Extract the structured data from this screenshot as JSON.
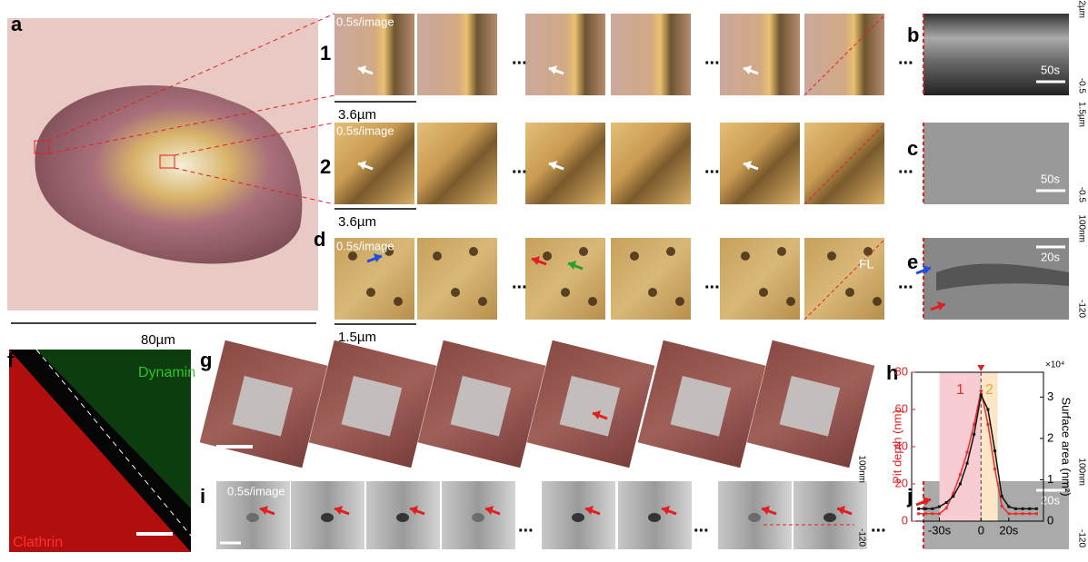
{
  "panel_labels": {
    "a": "a",
    "b": "b",
    "c": "c",
    "d": "d",
    "e": "e",
    "f": "f",
    "g": "g",
    "h": "h",
    "i": "i",
    "j": "j"
  },
  "row_labels": [
    "1",
    "2"
  ],
  "frame_caption": "0.5s/image",
  "ellipsis": "...",
  "scale_bars": {
    "cell": "80µm",
    "row1": "3.6µm",
    "row2": "3.6µm",
    "row_d": "1.5µm",
    "b": "50s",
    "c": "50s",
    "e": "20s",
    "j": "20s"
  },
  "kymograph_axes": {
    "b": [
      "2µm",
      "-0.5"
    ],
    "c": [
      "1.5µm",
      "-0.5"
    ],
    "e": [
      "100nm",
      "-120"
    ],
    "i": [
      "100nm",
      "-120"
    ],
    "j": [
      "100nm",
      "-120"
    ]
  },
  "labels": {
    "fl": "FL",
    "dynamin": "Dynamin",
    "clathrin": "Clathrin"
  },
  "chart_data": {
    "type": "line",
    "ylabel": "Pit depth (nm)",
    "y2label": "Surface area (nm²)",
    "y2_multiplier": "×10⁴",
    "x": [
      -45,
      -40,
      -35,
      -30,
      -25,
      -20,
      -15,
      -10,
      -5,
      0,
      5,
      10,
      15,
      20,
      25,
      30,
      35,
      40
    ],
    "xlim": [
      -50,
      45
    ],
    "xticks": [
      {
        "value": -30,
        "label": "-30s"
      },
      0,
      {
        "value": 20,
        "label": "20s"
      }
    ],
    "ylim": [
      0,
      80
    ],
    "yticks": [
      0,
      20,
      40,
      60,
      80
    ],
    "y2lim": [
      0,
      3.6
    ],
    "y2ticks": [
      0,
      1,
      2,
      3
    ],
    "event_x": 0,
    "regions": [
      {
        "label": "1",
        "from": -30,
        "to": 0,
        "color": "#f7ccd3",
        "label_color": "#e8302a"
      },
      {
        "label": "2",
        "from": 0,
        "to": 12,
        "color": "#fbe6c8",
        "label_color": "#f0a030"
      }
    ],
    "series": [
      {
        "color": "#e8302a",
        "values": [
          4,
          4,
          4,
          4,
          7,
          15,
          25,
          37,
          52,
          70,
          52,
          28,
          8,
          4,
          4,
          4,
          4,
          4
        ]
      },
      {
        "color": "#111111",
        "axis": "y2",
        "values": [
          0.3,
          0.3,
          0.3,
          0.35,
          0.45,
          0.6,
          0.9,
          1.4,
          2.1,
          3.05,
          2.7,
          1.7,
          0.6,
          0.35,
          0.3,
          0.3,
          0.3,
          0.3
        ]
      }
    ]
  }
}
